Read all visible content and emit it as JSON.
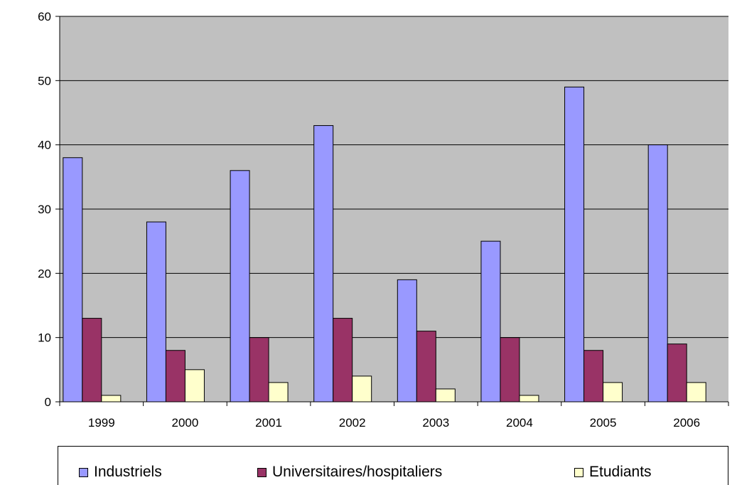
{
  "chart_data": {
    "type": "bar",
    "categories": [
      "1999",
      "2000",
      "2001",
      "2002",
      "2003",
      "2004",
      "2005",
      "2006"
    ],
    "series": [
      {
        "name": "Industriels",
        "color": "#9999ff",
        "values": [
          38,
          28,
          36,
          43,
          19,
          25,
          49,
          40
        ]
      },
      {
        "name": "Universitaires/hospitaliers",
        "color": "#993366",
        "values": [
          13,
          8,
          10,
          13,
          11,
          10,
          8,
          9
        ]
      },
      {
        "name": "Etudiants",
        "color": "#ffffcc",
        "values": [
          1,
          5,
          3,
          4,
          2,
          1,
          3,
          3
        ]
      }
    ],
    "yticks": [
      "0",
      "10",
      "20",
      "30",
      "40",
      "50",
      "60"
    ],
    "ylim": [
      0,
      60
    ],
    "grid": true,
    "plot_background": "#c0c0c0",
    "legend_position": "bottom"
  }
}
